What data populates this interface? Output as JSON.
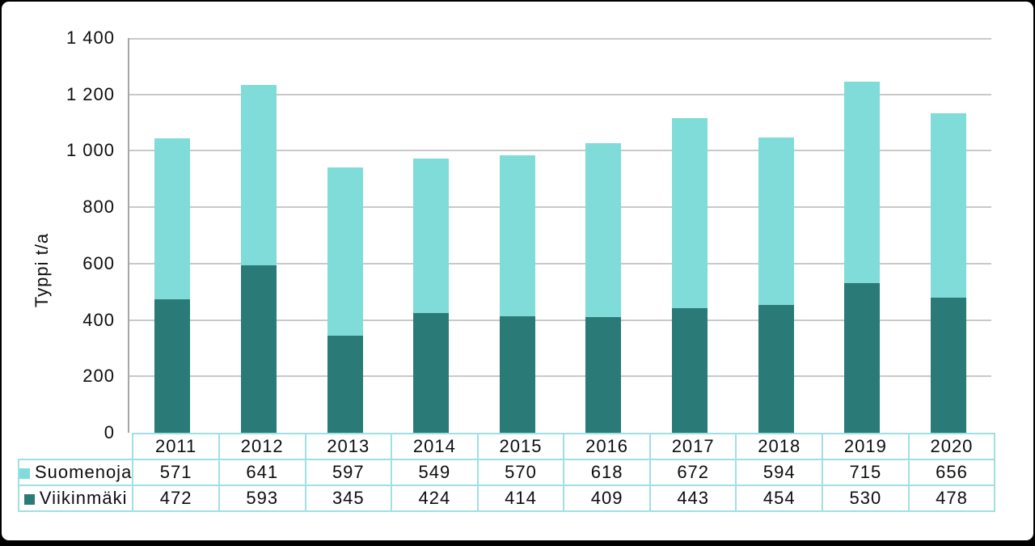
{
  "chart_data": {
    "type": "bar",
    "stacked": true,
    "title": "",
    "xlabel": "",
    "ylabel": "Typpi t/a",
    "ylim": [
      0,
      1400
    ],
    "ytick_step": 200,
    "ytick_labels": [
      "0",
      "200",
      "400",
      "600",
      "800",
      "1 000",
      "1 200",
      "1 400"
    ],
    "categories": [
      "2011",
      "2012",
      "2013",
      "2014",
      "2015",
      "2016",
      "2017",
      "2018",
      "2019",
      "2020"
    ],
    "series": [
      {
        "name": "Suomenoja",
        "color": "#80dcd8",
        "values": [
          571,
          641,
          597,
          549,
          570,
          618,
          672,
          594,
          715,
          656
        ]
      },
      {
        "name": "Viikinmäki",
        "color": "#2a7a78",
        "values": [
          472,
          593,
          345,
          424,
          414,
          409,
          443,
          454,
          530,
          478
        ]
      }
    ],
    "grid": true,
    "legend_position": "table-left",
    "data_table_shown": true
  },
  "colors": {
    "background": "#ffffff",
    "frame": "#000000",
    "gridline": "#c9c9c9",
    "axis_line": "#a6a6a6",
    "table_border": "#9fe0e3",
    "text": "#0d0d0d"
  }
}
